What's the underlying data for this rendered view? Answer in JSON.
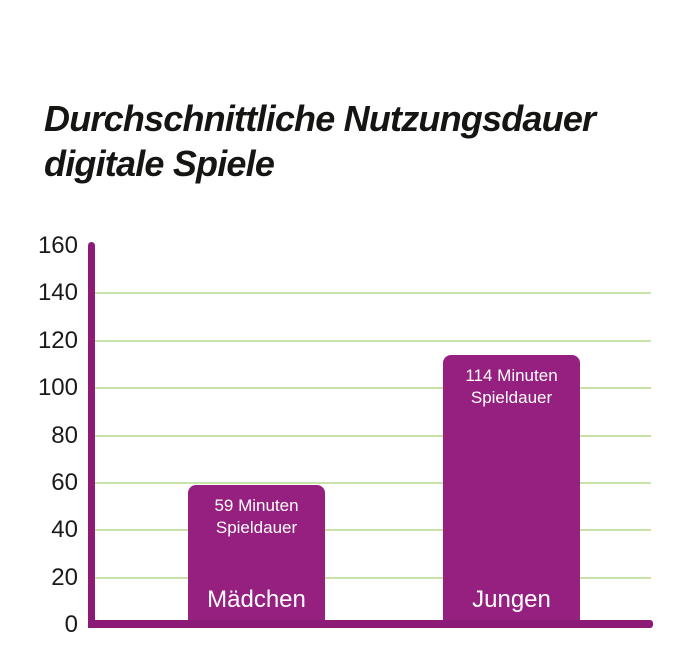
{
  "title": {
    "line1": "Durchschnittliche Nutzungsdauer",
    "line2": "digitale Spiele"
  },
  "colors": {
    "background": "#ffffff",
    "bar": "#96207f",
    "axis": "#8c1a77",
    "grid": "#c8e3a9",
    "tick_text": "#1a1a18",
    "title_text": "#151513",
    "bar_label_text": "#ffffff"
  },
  "chart_data": {
    "type": "bar",
    "title": "Durchschnittliche Nutzungsdauer digitale Spiele",
    "categories": [
      "Mädchen",
      "Jungen"
    ],
    "values": [
      59,
      114
    ],
    "unit": "Minuten",
    "bars": [
      {
        "category": "Mädchen",
        "value": 59,
        "annotation_lines": [
          "59 Minuten",
          "Spieldauer"
        ]
      },
      {
        "category": "Jungen",
        "value": 114,
        "annotation_lines": [
          "114 Minuten",
          "Spieldauer"
        ]
      }
    ],
    "xlabel": "",
    "ylabel": "",
    "ylim": [
      0,
      160
    ],
    "yticks": [
      0,
      20,
      40,
      60,
      80,
      100,
      120,
      140,
      160
    ],
    "grid": "horizontal",
    "legend": "none"
  }
}
